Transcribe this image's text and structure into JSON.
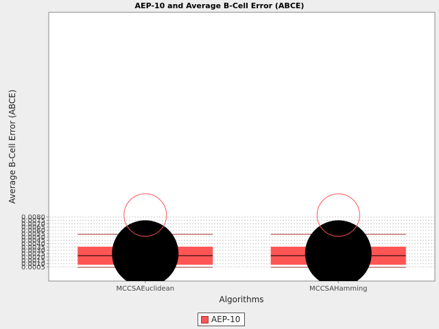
{
  "chart_data": {
    "type": "box",
    "title": "AEP-10 and Average B-Cell Error (ABCE)",
    "xlabel": "Algorithms",
    "ylabel": "Average B-Cell Error (ABCE)",
    "ylim": [
      0.00035,
      0.0082
    ],
    "yticks": [
      "0.0005",
      "0.0010",
      "0.0015",
      "0.0020",
      "0.0025",
      "0.0030",
      "0.0035",
      "0.0040",
      "0.0045",
      "0.0050",
      "0.0055",
      "0.0060",
      "0.0065",
      "0.0070",
      "0.0075",
      "0.0080"
    ],
    "grid": true,
    "legend_position": "bottom",
    "categories": [
      "MCCSAEuclidean",
      "MCCSAHamming"
    ],
    "series": [
      {
        "name": "AEP-10",
        "color": "#ff5555",
        "boxes": [
          {
            "whisker_low": 0.00045,
            "q1": 0.00083,
            "median": 0.0022,
            "q3": 0.00355,
            "whisker_high": 0.0054,
            "mean": 0.00252,
            "outlier": 0.0083
          },
          {
            "whisker_low": 0.00045,
            "q1": 0.00083,
            "median": 0.0022,
            "q3": 0.00355,
            "whisker_high": 0.0054,
            "mean": 0.00252,
            "outlier": 0.0083
          }
        ]
      }
    ]
  }
}
